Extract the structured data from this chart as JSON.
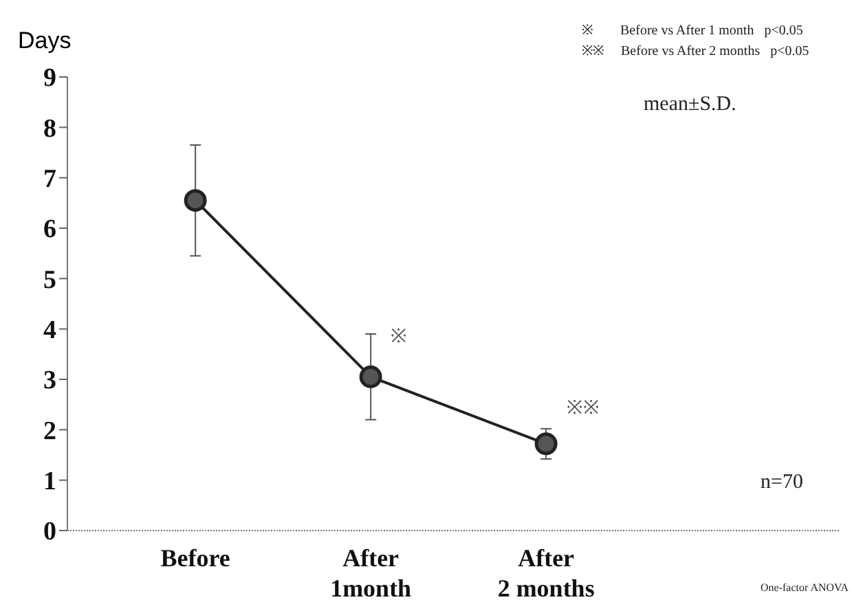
{
  "chart_data": {
    "type": "line",
    "ylabel": "Days",
    "categories": [
      "Before",
      "After\n1month",
      "After\n2 months"
    ],
    "series": [
      {
        "color": "#222222",
        "values": [
          6.55,
          3.05,
          1.72
        ],
        "errors": [
          1.1,
          0.85,
          0.3
        ]
      }
    ],
    "ylim": [
      0,
      9
    ],
    "yticks": [
      0,
      1,
      2,
      3,
      4,
      5,
      6,
      7,
      8,
      9
    ],
    "marker": "circle",
    "line_style": "solid",
    "grid": false,
    "legend": false,
    "annotations": [
      "※",
      "※※",
      "※        Before vs After 1 month   p<0.05",
      "※※     Before vs After 2 months   p<0.05",
      "mean±S.D.",
      "n=70",
      "One-factor ANOVA"
    ]
  }
}
